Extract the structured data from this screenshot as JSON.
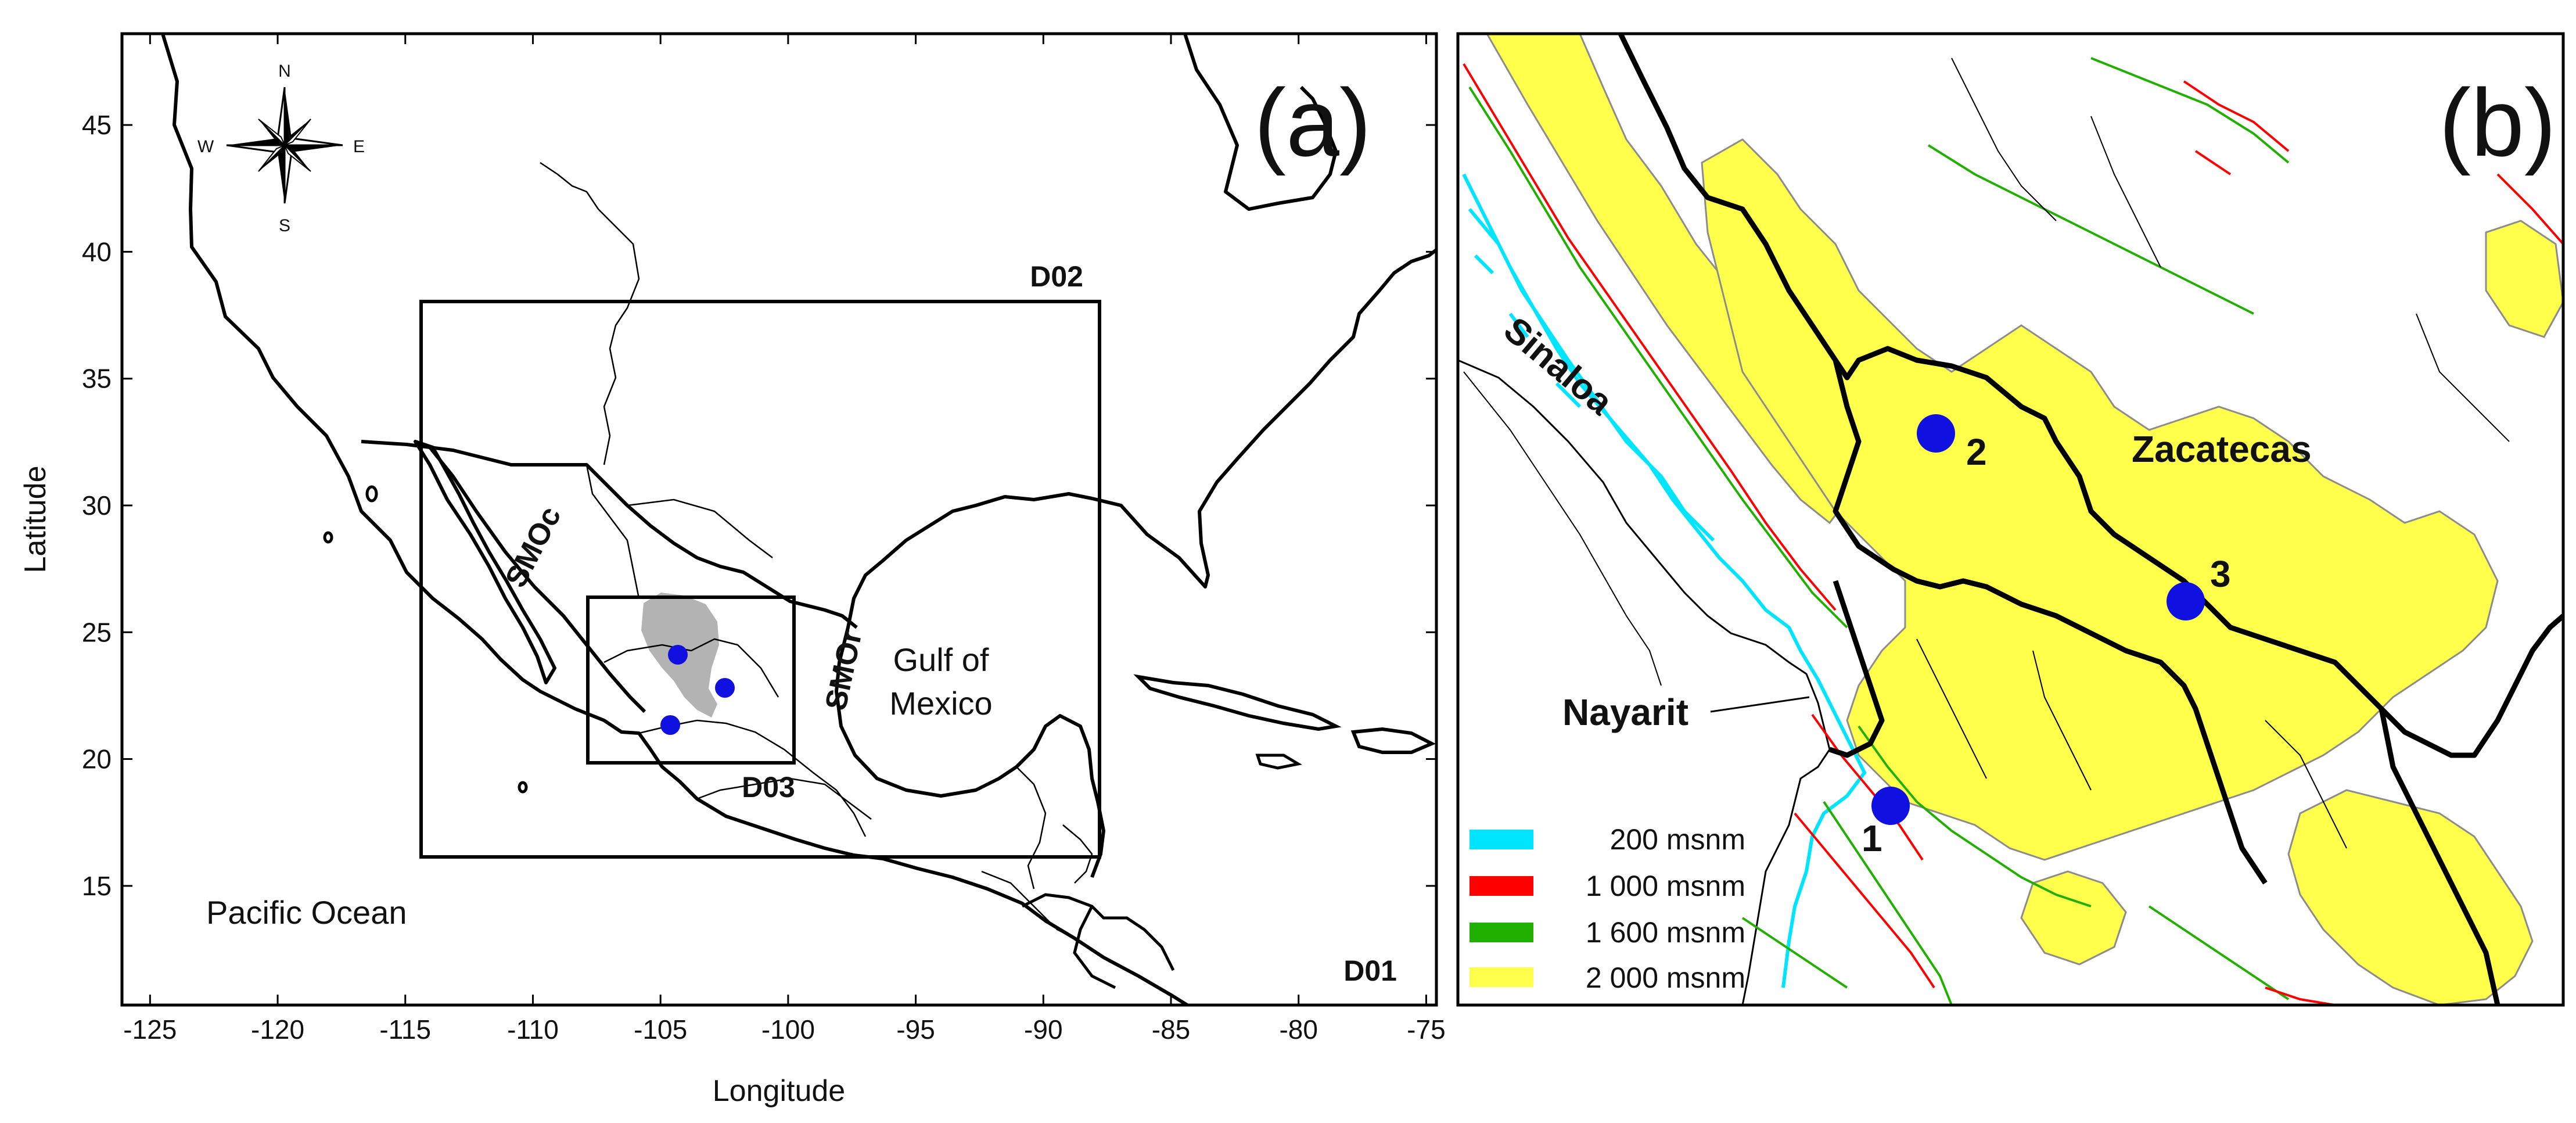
{
  "panel_a": {
    "label": "(a)",
    "xlabel": "Longitude",
    "ylabel": "Latitude",
    "x_ticks": [
      -125,
      -120,
      -115,
      -110,
      -105,
      -100,
      -95,
      -90,
      -85,
      -80,
      -75
    ],
    "y_ticks": [
      15,
      20,
      25,
      30,
      35,
      40,
      45
    ],
    "xlim": [
      -126.1,
      -74.6
    ],
    "ylim": [
      10.3,
      48.6
    ],
    "compass": {
      "n": "N",
      "s": "S",
      "e": "E",
      "w": "W"
    },
    "domains": [
      {
        "name": "D01",
        "lon": [
          -126.1,
          -74.6
        ],
        "lat": [
          10.3,
          48.6
        ]
      },
      {
        "name": "D02",
        "lon": [
          -115.0,
          -88.0
        ],
        "lat": [
          16.2,
          38.2
        ]
      },
      {
        "name": "D03",
        "lon": [
          -108.0,
          -100.0
        ],
        "lat": [
          20.0,
          26.6
        ]
      }
    ],
    "labels": {
      "d01": "D01",
      "d02": "D02",
      "d03": "D03",
      "smoc": "SMOc",
      "smor": "SMOr",
      "gulf_line1": "Gulf of",
      "gulf_line2": "Mexico",
      "pacific": "Pacific Ocean"
    },
    "stations": [
      {
        "id": 1,
        "lon": -104.9,
        "lat": 21.5
      },
      {
        "id": 2,
        "lon": -104.6,
        "lat": 24.1
      },
      {
        "id": 3,
        "lon": -102.7,
        "lat": 22.9
      }
    ]
  },
  "panel_b": {
    "label": "(b)",
    "states": {
      "sinaloa": "Sinaloa",
      "zacatecas": "Zacatecas",
      "nayarit": "Nayarit"
    },
    "stations": [
      {
        "id": 1,
        "label": "1"
      },
      {
        "id": 2,
        "label": "2"
      },
      {
        "id": 3,
        "label": "3"
      }
    ],
    "legend": [
      {
        "label": "200 msnm",
        "color": "#00e5ff"
      },
      {
        "label": "1 000 msnm",
        "color": "#ff0000"
      },
      {
        "label": "1 600 msnm",
        "color": "#22b000"
      },
      {
        "label": "2 000 msnm",
        "color": "#ffff4c"
      }
    ]
  },
  "colors": {
    "station": "#1010e0",
    "terrain_shade": "#b3b3b3",
    "contour_gray": "#8c8c8c"
  }
}
